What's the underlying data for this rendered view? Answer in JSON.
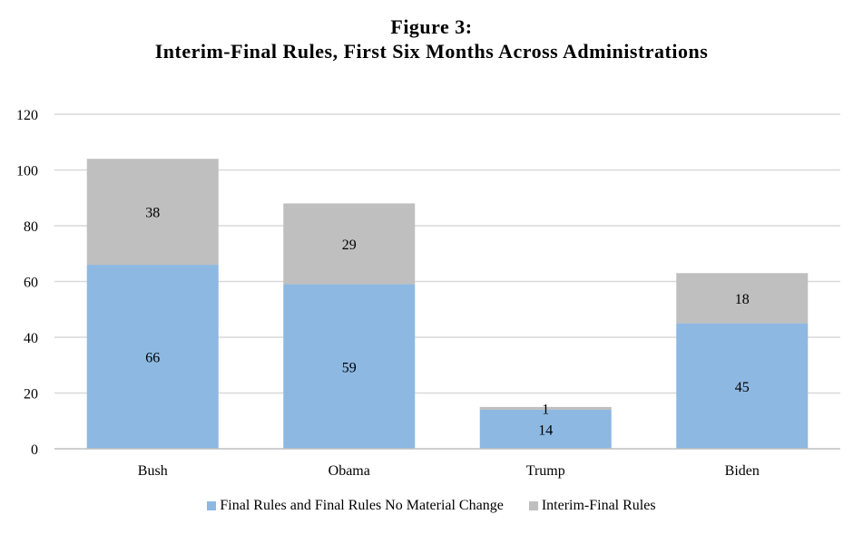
{
  "chart_data": {
    "type": "bar",
    "stacked": true,
    "title_line1": "Figure 3:",
    "title_line2": "Interim-Final Rules, First Six Months Across Administrations",
    "categories": [
      "Bush",
      "Obama",
      "Trump",
      "Biden"
    ],
    "series": [
      {
        "name": "Final Rules and Final Rules No Material Change",
        "values": [
          66,
          59,
          14,
          45
        ],
        "color": "#8db8e2"
      },
      {
        "name": "Interim-Final Rules",
        "values": [
          38,
          29,
          1,
          18
        ],
        "color": "#bfbfbf"
      }
    ],
    "ylim": [
      0,
      120
    ],
    "yticks": [
      0,
      20,
      40,
      60,
      80,
      100,
      120
    ],
    "grid": true,
    "legend": "bottom"
  }
}
